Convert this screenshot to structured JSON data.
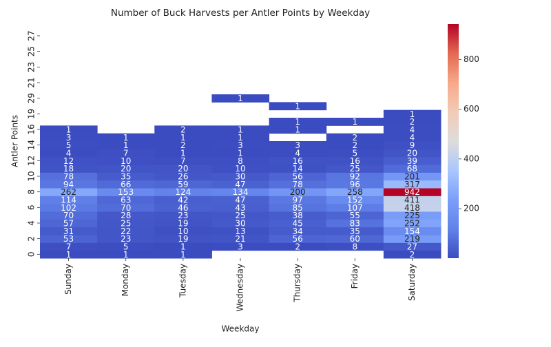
{
  "chart_data": {
    "type": "heatmap",
    "title": "Number of Buck Harvests per Antler Points by Weekday",
    "x_label": "Weekday",
    "y_label": "Antler Points",
    "x": [
      "Sunday",
      "Monday",
      "Tuesday",
      "Wednesday",
      "Thursday",
      "Friday",
      "Saturday"
    ],
    "y": [
      "0",
      null,
      "2",
      null,
      "4",
      null,
      "6",
      null,
      "8",
      null,
      "10",
      null,
      "12",
      null,
      "14",
      null,
      "16",
      null,
      "19",
      null,
      "29",
      null,
      "21",
      null,
      "23",
      null,
      "25",
      null,
      "27",
      null
    ],
    "values": [
      [
        1,
        1,
        1,
        null,
        null,
        null,
        2
      ],
      [
        7,
        5,
        1,
        3,
        2,
        8,
        27
      ],
      [
        53,
        23,
        19,
        21,
        56,
        60,
        219
      ],
      [
        31,
        22,
        10,
        13,
        34,
        35,
        154
      ],
      [
        57,
        25,
        19,
        30,
        45,
        83,
        252
      ],
      [
        70,
        28,
        23,
        25,
        38,
        55,
        225
      ],
      [
        102,
        70,
        46,
        43,
        85,
        107,
        418
      ],
      [
        114,
        63,
        42,
        47,
        97,
        152,
        411
      ],
      [
        262,
        153,
        124,
        134,
        200,
        258,
        942
      ],
      [
        94,
        66,
        59,
        47,
        78,
        96,
        317
      ],
      [
        78,
        35,
        26,
        30,
        56,
        92,
        201
      ],
      [
        18,
        20,
        20,
        10,
        14,
        25,
        68
      ],
      [
        12,
        10,
        7,
        8,
        16,
        16,
        39
      ],
      [
        4,
        7,
        1,
        1,
        4,
        5,
        20
      ],
      [
        5,
        1,
        2,
        3,
        3,
        2,
        9
      ],
      [
        3,
        1,
        1,
        1,
        null,
        2,
        4
      ],
      [
        1,
        null,
        2,
        1,
        1,
        null,
        4
      ],
      [
        null,
        null,
        null,
        null,
        1,
        1,
        2
      ],
      [
        null,
        null,
        null,
        null,
        null,
        null,
        1
      ],
      [
        null,
        null,
        null,
        null,
        1,
        null,
        null
      ],
      [
        null,
        null,
        null,
        1,
        null,
        null,
        null
      ],
      [
        null,
        null,
        null,
        null,
        null,
        null,
        null
      ],
      [
        null,
        null,
        null,
        null,
        null,
        null,
        null
      ],
      [
        null,
        null,
        null,
        null,
        null,
        null,
        null
      ],
      [
        null,
        null,
        null,
        null,
        null,
        null,
        null
      ],
      [
        null,
        null,
        null,
        null,
        null,
        null,
        null
      ],
      [
        null,
        null,
        null,
        null,
        null,
        null,
        null
      ],
      [
        null,
        null,
        null,
        null,
        null,
        null,
        null
      ],
      [
        null,
        null,
        null,
        null,
        null,
        null,
        null
      ],
      [
        null,
        null,
        null,
        null,
        null,
        null,
        null
      ]
    ],
    "colormap": "coolwarm",
    "zlim": [
      1,
      942
    ],
    "colorbar_ticks": [
      200,
      400,
      600,
      800
    ]
  }
}
